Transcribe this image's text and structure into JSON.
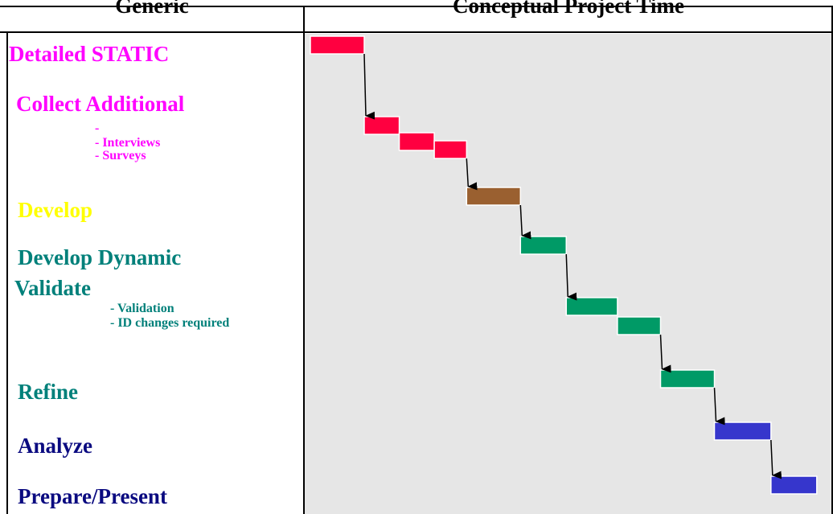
{
  "header": {
    "left_title": "Generic",
    "right_title": "Conceptual Project Time"
  },
  "colors": {
    "magenta": "#ff00ff",
    "yellow": "#ffff00",
    "teal": "#00807a",
    "navy": "#0a0a80",
    "red_bar": "#ff0040",
    "brown_bar": "#9a6030",
    "green_bar": "#009a66",
    "blue_bar": "#3636cc",
    "chart_bg": "#e6e6e6"
  },
  "tasks": [
    {
      "label": "Detailed STATIC",
      "color": "magenta",
      "sub": []
    },
    {
      "label": "Collect Additional",
      "color": "magenta",
      "sub": [
        "-",
        "- Interviews",
        "- Surveys"
      ]
    },
    {
      "label": "Develop",
      "color": "yellow",
      "sub": []
    },
    {
      "label": "Develop Dynamic",
      "color": "teal",
      "sub": []
    },
    {
      "label": "Validate",
      "color": "teal",
      "sub": [
        "- Validation",
        "- ID changes required"
      ]
    },
    {
      "label": "Refine",
      "color": "teal",
      "sub": []
    },
    {
      "label": "Analyze",
      "color": "navy",
      "sub": []
    },
    {
      "label": "Prepare/Present",
      "color": "navy",
      "sub": []
    }
  ],
  "chart_data": {
    "type": "gantt",
    "bars": [
      {
        "task": 0,
        "start": 0.0,
        "end": 1.0,
        "color": "red_bar"
      },
      {
        "task": 1,
        "start": 1.0,
        "end": 1.65,
        "color": "red_bar"
      },
      {
        "task": 1,
        "start": 1.65,
        "end": 2.3,
        "color": "red_bar"
      },
      {
        "task": 1,
        "start": 2.3,
        "end": 2.9,
        "color": "red_bar"
      },
      {
        "task": 2,
        "start": 2.9,
        "end": 3.9,
        "color": "brown_bar"
      },
      {
        "task": 3,
        "start": 3.9,
        "end": 4.75,
        "color": "green_bar"
      },
      {
        "task": 4,
        "start": 4.75,
        "end": 5.7,
        "color": "green_bar"
      },
      {
        "task": 4,
        "start": 5.7,
        "end": 6.5,
        "color": "green_bar"
      },
      {
        "task": 5,
        "start": 6.5,
        "end": 7.5,
        "color": "green_bar"
      },
      {
        "task": 6,
        "start": 7.5,
        "end": 8.55,
        "color": "blue_bar"
      },
      {
        "task": 7,
        "start": 8.55,
        "end": 9.4,
        "color": "blue_bar"
      }
    ],
    "dependencies": [
      [
        0,
        1
      ],
      [
        3,
        4
      ],
      [
        4,
        5
      ],
      [
        5,
        6
      ],
      [
        7,
        8
      ],
      [
        8,
        9
      ],
      [
        9,
        10
      ]
    ]
  }
}
